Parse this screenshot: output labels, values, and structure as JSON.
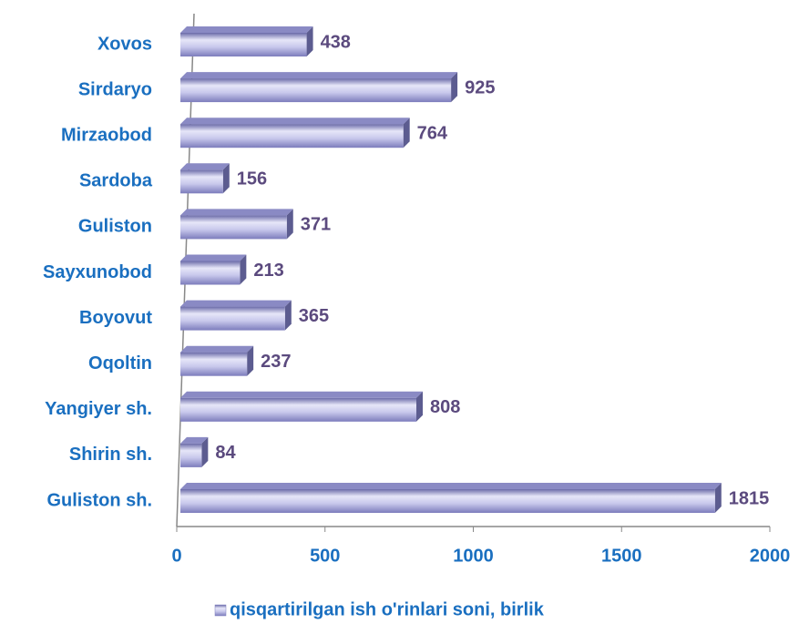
{
  "chart_data": {
    "type": "bar",
    "orientation": "horizontal",
    "categories": [
      "Xovos",
      "Sirdaryo",
      "Mirzaobod",
      "Sardoba",
      "Guliston",
      "Sayxunobod",
      "Boyovut",
      "Oqoltin",
      "Yangiyer sh.",
      "Shirin sh.",
      "Guliston sh."
    ],
    "series": [
      {
        "name": "qisqartirilgan ish o'rinlari soni, birlik",
        "color": "#8080c0",
        "values": [
          438,
          925,
          764,
          156,
          371,
          213,
          365,
          237,
          808,
          84,
          1815
        ]
      }
    ],
    "xlim": [
      0,
      2000
    ],
    "xticks": [
      0,
      500,
      1000,
      1500,
      2000
    ],
    "legend": "bottom"
  }
}
